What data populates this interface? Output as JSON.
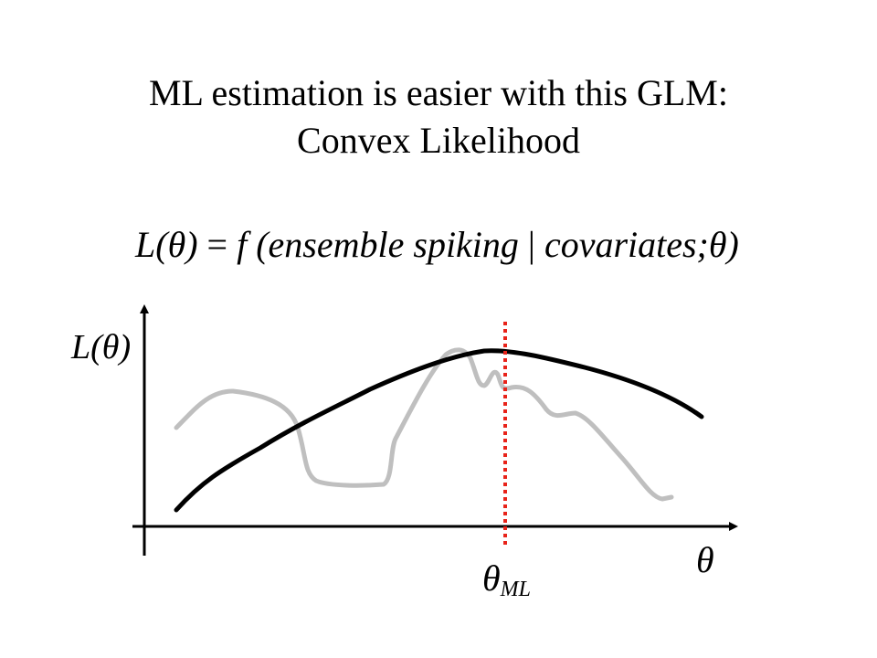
{
  "title": {
    "line1": "ML estimation is easier with this GLM:",
    "line2": "Convex Likelihood"
  },
  "formula": {
    "lhs": "L(θ)",
    "eq": " = ",
    "func": "f (ensemble spiking ",
    "bar": "|",
    "args": " covariates;θ)"
  },
  "axes": {
    "y_label": "L(θ)",
    "x_label": "θ",
    "ml_label": "θ",
    "ml_subscript": "ML"
  },
  "colors": {
    "convex_curve": "#000000",
    "nonconvex_curve": "#bfbfbf",
    "ml_marker": "#e8231a",
    "axes": "#000000"
  }
}
